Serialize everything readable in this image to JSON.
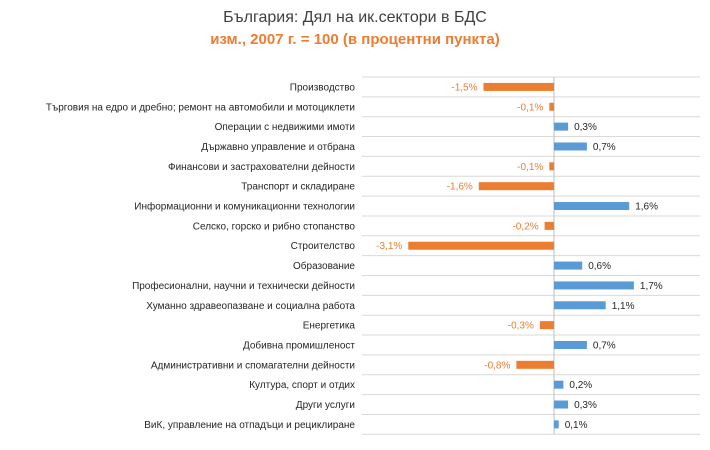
{
  "chart_data": {
    "type": "bar",
    "orientation": "horizontal",
    "title": "България: Дял на ик.сектори в БДС",
    "subtitle": "изм., 2007 г. = 100 (в процентни пункта)",
    "categories": [
      "Производство",
      "Търговия на едро и дребно; ремонт на автомобили и мотоциклети",
      "Операции с недвижими имоти",
      "Държавно управление и отбрана",
      "Финансови и застрахователни дейности",
      "Транспорт и складиране",
      "Информационни и комуникационни технологии",
      "Селско, горско и рибно стопанство",
      "Строителство",
      "Образование",
      "Професионални, научни и технически дейности",
      "Хуманно здравеопазване и социална работа",
      "Енергетика",
      "Добивна промишленост",
      "Административни и спомагателни дейности",
      "Култура, спорт и отдих",
      "Други услуги",
      "ВиК, управление на отпадъци и рециклиране"
    ],
    "values": [
      -1.5,
      -0.1,
      0.3,
      0.7,
      -0.1,
      -1.6,
      1.6,
      -0.2,
      -3.1,
      0.6,
      1.7,
      1.1,
      -0.3,
      0.7,
      -0.8,
      0.2,
      0.3,
      0.1
    ],
    "value_labels": [
      "-1,5%",
      "-0,1%",
      "0,3%",
      "0,7%",
      "-0,1%",
      "-1,6%",
      "1,6%",
      "-0,2%",
      "-3,1%",
      "0,6%",
      "1,7%",
      "1,1%",
      "-0,3%",
      "0,7%",
      "-0,8%",
      "0,2%",
      "0,3%",
      "0,1%"
    ],
    "colors": {
      "positive": "#5B9BD5",
      "negative": "#ED7D31",
      "gridline": "#D9D9D9",
      "axis": "#BFBFBF",
      "title": "#404040"
    },
    "grid": true,
    "legend": "none"
  }
}
